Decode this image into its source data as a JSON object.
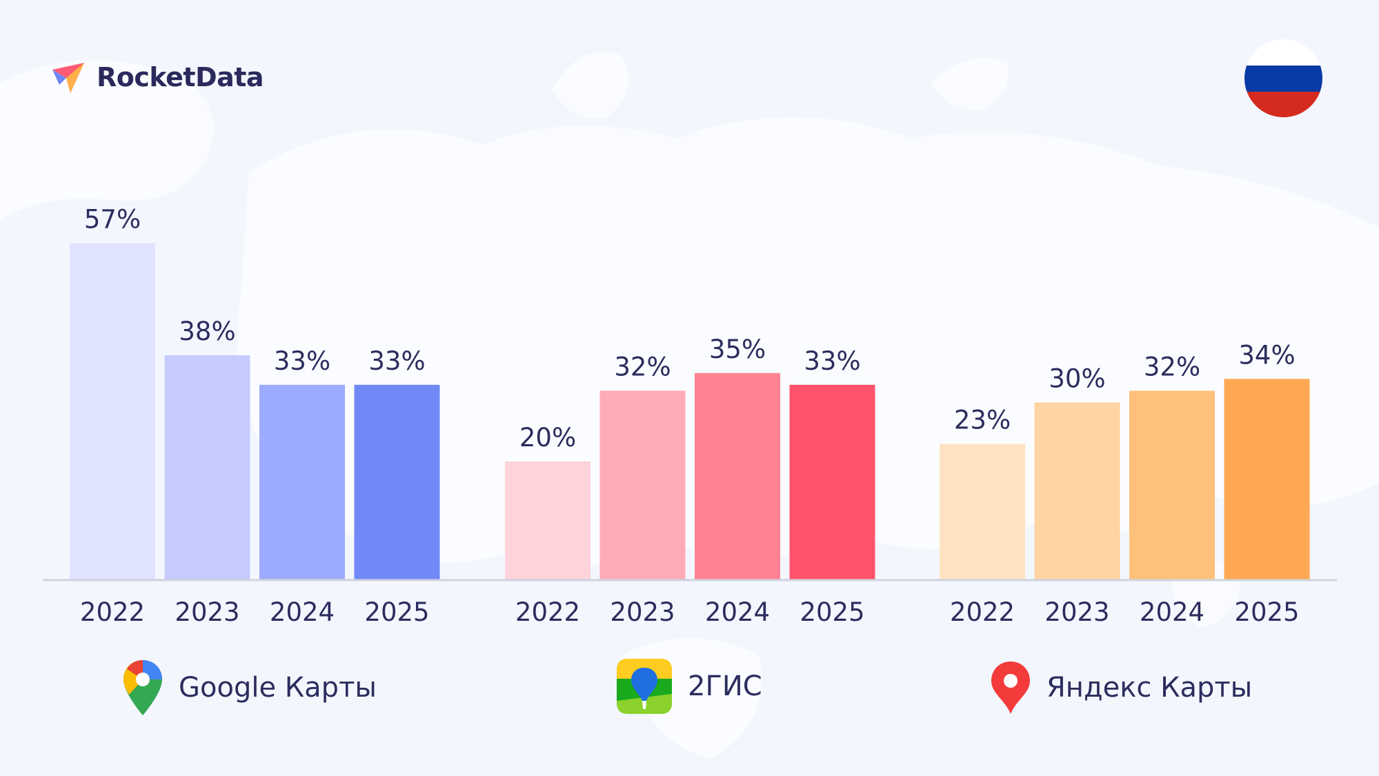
{
  "brand": {
    "name": "RocketData"
  },
  "flag": {
    "icon": "russia-flag-icon",
    "colors": [
      "#ffffff",
      "#0a3aa6",
      "#d52b1e"
    ]
  },
  "chart_data": {
    "type": "bar",
    "ylim": [
      0,
      60
    ],
    "grid": false,
    "legend_placement": "bottom",
    "groups": [
      {
        "name": "Google Карты",
        "icon": "google-maps-pin-icon",
        "categories": [
          "2022",
          "2023",
          "2024",
          "2025"
        ],
        "values": [
          57,
          38,
          33,
          33
        ],
        "labels": [
          "57%",
          "38%",
          "33%",
          "33%"
        ],
        "colors": [
          "#e0e3fe",
          "#c5cbfd",
          "#9cabfd",
          "#7089f7"
        ]
      },
      {
        "name": "2ГИС",
        "icon": "2gis-app-icon",
        "categories": [
          "2022",
          "2023",
          "2024",
          "2025"
        ],
        "values": [
          20,
          32,
          35,
          33
        ],
        "labels": [
          "20%",
          "32%",
          "35%",
          "33%"
        ],
        "colors": [
          "#ffd3da",
          "#ffabb7",
          "#ff8293",
          "#ff546c"
        ]
      },
      {
        "name": "Яндекс Карты",
        "icon": "yandex-maps-pin-icon",
        "categories": [
          "2022",
          "2023",
          "2024",
          "2025"
        ],
        "values": [
          23,
          30,
          32,
          34
        ],
        "labels": [
          "23%",
          "30%",
          "32%",
          "34%"
        ],
        "colors": [
          "#ffe2c2",
          "#ffd3a2",
          "#ffc07b",
          "#ffa853"
        ]
      }
    ]
  }
}
